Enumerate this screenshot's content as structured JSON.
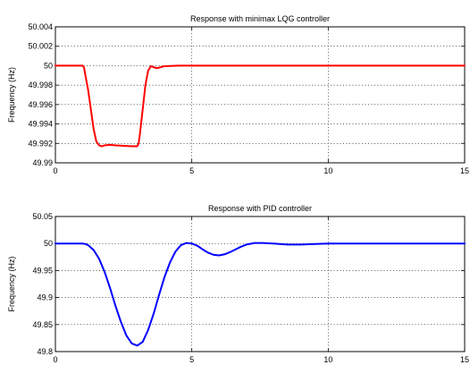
{
  "chart_data": [
    {
      "type": "line",
      "title": "Response with minimax LQG controller",
      "xlabel": "",
      "ylabel": "Frequency (Hz)",
      "xlim": [
        0,
        15
      ],
      "ylim": [
        49.99,
        50.004
      ],
      "xticks": [
        0,
        5,
        10,
        15
      ],
      "xtick_labels": [
        "0",
        "5",
        "10",
        "15"
      ],
      "yticks": [
        49.99,
        49.992,
        49.994,
        49.996,
        49.998,
        50,
        50.002,
        50.004
      ],
      "ytick_labels": [
        "49.99",
        "49.992",
        "49.994",
        "49.996",
        "49.998",
        "50",
        "50.002",
        "50.004"
      ],
      "grid": true,
      "series": [
        {
          "color": "#ff0000",
          "x": [
            0,
            0.5,
            1.0,
            1.05,
            1.1,
            1.2,
            1.3,
            1.4,
            1.5,
            1.6,
            1.7,
            1.8,
            2.0,
            2.2,
            2.5,
            2.8,
            3.0,
            3.05,
            3.1,
            3.2,
            3.3,
            3.4,
            3.5,
            3.6,
            3.7,
            3.8,
            4.0,
            4.5,
            5.0,
            6,
            8,
            10,
            12,
            15
          ],
          "y": [
            50,
            50,
            50,
            49.9998,
            49.999,
            49.9975,
            49.9955,
            49.9935,
            49.9922,
            49.9918,
            49.9917,
            49.9918,
            49.99185,
            49.9918,
            49.99175,
            49.9917,
            49.9917,
            49.992,
            49.993,
            49.9955,
            49.998,
            49.9995,
            49.99995,
            49.99985,
            49.99975,
            49.9998,
            49.99995,
            50,
            50,
            50,
            50,
            50,
            50,
            50
          ]
        }
      ]
    },
    {
      "type": "line",
      "title": "Response with PID controller",
      "xlabel": "",
      "ylabel": "Frequency (Hz)",
      "xlim": [
        0,
        15
      ],
      "ylim": [
        49.8,
        50.05
      ],
      "xticks": [
        0,
        5,
        10,
        15
      ],
      "xtick_labels": [
        "0",
        "5",
        "10",
        "15"
      ],
      "yticks": [
        49.8,
        49.85,
        49.9,
        49.95,
        50,
        50.05
      ],
      "ytick_labels": [
        "49.8",
        "49.85",
        "49.9",
        "49.95",
        "50",
        "50.05"
      ],
      "grid": true,
      "series": [
        {
          "color": "#0000ff",
          "x": [
            0,
            0.5,
            1.0,
            1.1,
            1.2,
            1.4,
            1.6,
            1.8,
            2.0,
            2.2,
            2.4,
            2.6,
            2.8,
            3.0,
            3.2,
            3.4,
            3.6,
            3.8,
            4.0,
            4.2,
            4.4,
            4.6,
            4.8,
            5.0,
            5.2,
            5.4,
            5.6,
            5.8,
            6.0,
            6.2,
            6.4,
            6.6,
            6.8,
            7.0,
            7.3,
            7.6,
            8.0,
            8.5,
            9.0,
            9.5,
            10.0,
            11,
            12,
            13,
            14,
            15
          ],
          "y": [
            50,
            50,
            50,
            49.999,
            49.997,
            49.988,
            49.972,
            49.948,
            49.918,
            49.885,
            49.855,
            49.83,
            49.815,
            49.811,
            49.818,
            49.84,
            49.87,
            49.905,
            49.938,
            49.965,
            49.985,
            49.997,
            50.001,
            50.0,
            49.996,
            49.989,
            49.983,
            49.979,
            49.978,
            49.98,
            49.984,
            49.989,
            49.994,
            49.998,
            50.001,
            50.001,
            50.0,
            49.998,
            49.998,
            49.999,
            50.0,
            50.0,
            50.0,
            50.0,
            50.0,
            50.0
          ]
        }
      ]
    }
  ]
}
